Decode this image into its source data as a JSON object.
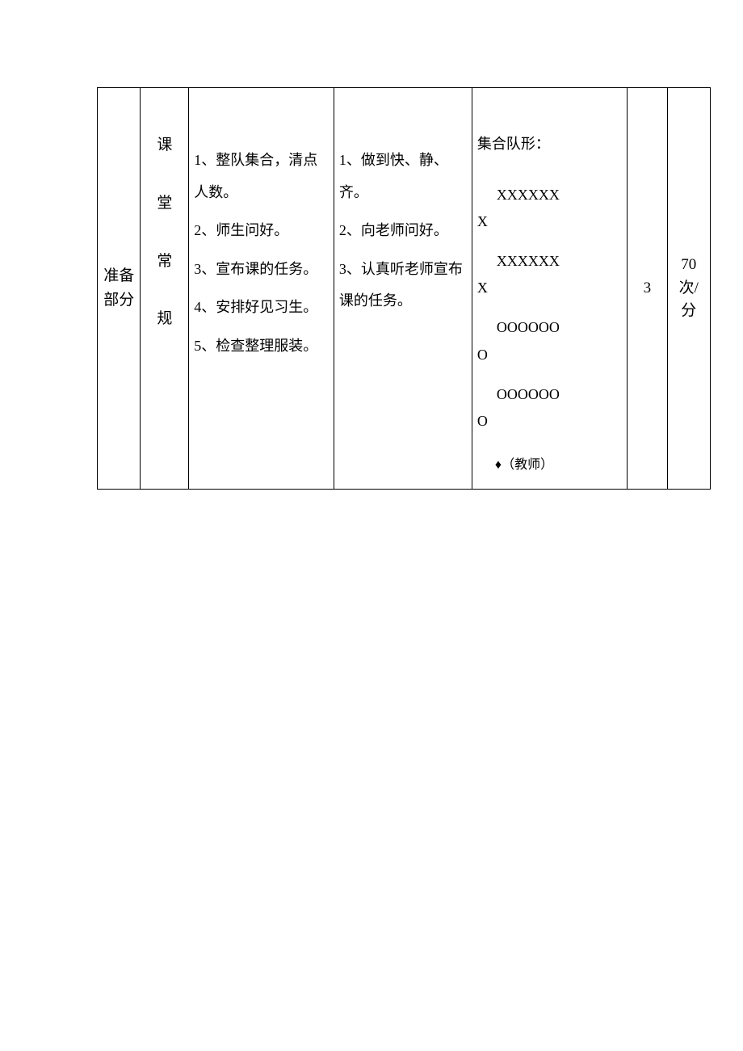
{
  "table": {
    "section": "准备部分",
    "subtitle": {
      "c1": "课",
      "c2": "堂",
      "c3": "常",
      "c4": "规"
    },
    "content1": {
      "p1": "1、整队集合，清点人数。",
      "p2": "2、师生问好。",
      "p3": "3、宣布课的任务。",
      "p4": "4、安排好见习生。",
      "p5": "5、检查整理服装。"
    },
    "content2": {
      "p1": "1、做到快、静、齐。",
      "p2": "2、向老师问好。",
      "p3": "3、认真听老师宣布课的任务。"
    },
    "formation": {
      "label": "集合队形：",
      "row1a": "XXXXXX",
      "row1b": "X",
      "row2a": "XXXXXX",
      "row2b": "X",
      "row3a": "OOOOOO",
      "row3b": "O",
      "row4a": "OOOOOO",
      "row4b": "O",
      "teacher": "♦（教师）"
    },
    "num": "3",
    "rate": "70次/分"
  }
}
